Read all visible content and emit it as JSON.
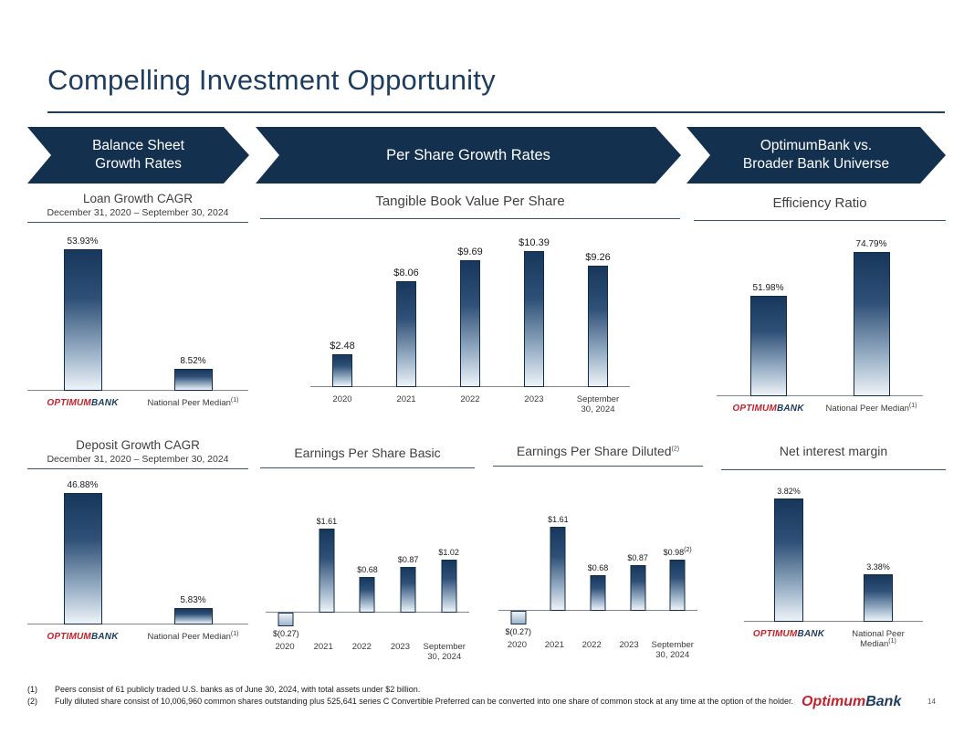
{
  "slide": {
    "title": "Compelling Investment Opportunity",
    "page_number": "14"
  },
  "logo": {
    "part1": "Optimum",
    "part2": "Bank",
    "color1": "#c0232c",
    "color2": "#1d3c5e"
  },
  "banners": [
    {
      "lines": [
        "Balance Sheet",
        "Growth Rates"
      ]
    },
    {
      "lines": [
        "Per Share Growth Rates"
      ]
    },
    {
      "lines": [
        "OptimumBank vs.",
        "Broader Bank Universe"
      ]
    }
  ],
  "chart_data": [
    {
      "type": "bar",
      "title": "Loan Growth CAGR",
      "subtitle": "December 31, 2020 – September 30, 2024",
      "categories": [
        "OptimumBank",
        "National Peer Median"
      ],
      "category_sup": [
        "",
        "(1)"
      ],
      "values": [
        53.93,
        8.52
      ],
      "value_labels": [
        "53.93%",
        "8.52%"
      ],
      "ylim": [
        0,
        60
      ]
    },
    {
      "type": "bar",
      "title": "Tangible Book Value Per Share",
      "categories": [
        "2020",
        "2021",
        "2022",
        "2023",
        "September 30, 2024"
      ],
      "values": [
        2.48,
        8.06,
        9.69,
        10.39,
        9.26
      ],
      "value_labels": [
        "$2.48",
        "$8.06",
        "$9.69",
        "$10.39",
        "$9.26"
      ],
      "ylim": [
        0,
        12
      ]
    },
    {
      "type": "bar",
      "title": "Efficiency Ratio",
      "categories": [
        "OptimumBank",
        "National Peer Median"
      ],
      "category_sup": [
        "",
        "(1)"
      ],
      "values": [
        51.98,
        74.79
      ],
      "value_labels": [
        "51.98%",
        "74.79%"
      ],
      "ylim": [
        0,
        85
      ]
    },
    {
      "type": "bar",
      "title": "Deposit Growth CAGR",
      "subtitle": "December 31, 2020 – September 30, 2024",
      "categories": [
        "OptimumBank",
        "National Peer Median"
      ],
      "category_sup": [
        "",
        "(1)"
      ],
      "values": [
        46.88,
        5.83
      ],
      "value_labels": [
        "46.88%",
        "5.83%"
      ],
      "ylim": [
        0,
        52
      ]
    },
    {
      "type": "bar",
      "title": "Earnings Per Share Basic",
      "categories": [
        "2020",
        "2021",
        "2022",
        "2023",
        "September 30, 2024"
      ],
      "values": [
        -0.27,
        1.61,
        0.68,
        0.87,
        1.02
      ],
      "value_labels": [
        "$(0.27)",
        "$1.61",
        "$0.68",
        "$0.87",
        "$1.02"
      ],
      "ylim": [
        -0.35,
        1.75
      ]
    },
    {
      "type": "bar",
      "title": "Earnings Per Share Diluted",
      "title_sup": "(2)",
      "categories": [
        "2020",
        "2021",
        "2022",
        "2023",
        "September 30, 2024"
      ],
      "values": [
        -0.27,
        1.61,
        0.68,
        0.87,
        0.98
      ],
      "value_labels": [
        "$(0.27)",
        "$1.61",
        "$0.68",
        "$0.87",
        "$0.98"
      ],
      "value_sup": [
        "",
        "",
        "",
        "",
        "(2)"
      ],
      "ylim": [
        -0.35,
        1.75
      ]
    },
    {
      "type": "bar",
      "title": "Net interest margin",
      "categories": [
        "OptimumBank",
        "National Peer Median"
      ],
      "category_sup": [
        "",
        "(1)"
      ],
      "values": [
        3.82,
        3.38
      ],
      "value_labels": [
        "3.82%",
        "3.38%"
      ],
      "ylim": [
        3.1,
        3.9
      ]
    }
  ],
  "footnotes": [
    {
      "marker": "(1)",
      "text": "Peers consist of 61 publicly traded U.S. banks as of June 30, 2024, with total assets under $2 billion."
    },
    {
      "marker": "(2)",
      "text": "Fully diluted share consist of 10,006,960 common shares outstanding  plus 525,641 series C  Convertible Preferred can be converted into one share of common stock at any time at the option of the holder."
    }
  ]
}
